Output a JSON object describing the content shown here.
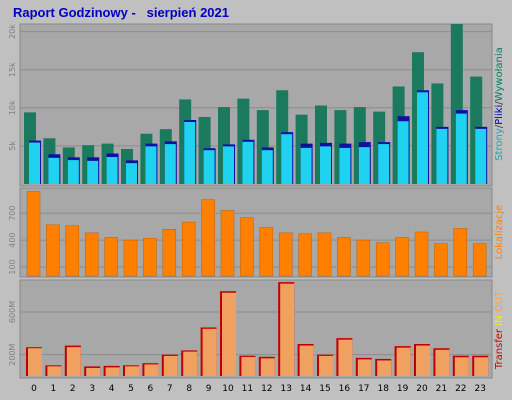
{
  "title": "Raport Godzinowy -   sierpień 2021",
  "chart_data": [
    {
      "type": "bar",
      "categories": [
        "0",
        "1",
        "2",
        "3",
        "4",
        "5",
        "6",
        "7",
        "8",
        "9",
        "10",
        "11",
        "12",
        "13",
        "14",
        "15",
        "16",
        "17",
        "18",
        "19",
        "20",
        "21",
        "22",
        "23"
      ],
      "y_ticks": [
        "5k",
        "10k",
        "15k",
        "20k"
      ],
      "ylim": [
        0,
        21000
      ],
      "grid": true,
      "legend": {
        "placement": "right",
        "entries": [
          {
            "label": "Strony",
            "color": "#00b0c8"
          },
          {
            "label": "Pliki",
            "color": "#0000c0"
          },
          {
            "label": "Wywołania",
            "color": "#008060"
          }
        ]
      },
      "series": [
        {
          "name": "Wywołania",
          "color": "#1b7a5e",
          "values": [
            9400,
            6000,
            4800,
            5100,
            5300,
            4600,
            6600,
            7200,
            11100,
            8800,
            10100,
            11200,
            9700,
            12300,
            9100,
            10300,
            9700,
            10100,
            9500,
            12800,
            17300,
            13200,
            21000,
            14100
          ]
        },
        {
          "name": "Pliki",
          "color": "#1010a0",
          "values": [
            5700,
            3900,
            3500,
            3500,
            4000,
            3100,
            5300,
            5600,
            8400,
            4700,
            5200,
            5800,
            4800,
            6800,
            5300,
            5400,
            5300,
            5500,
            5500,
            8900,
            12300,
            7500,
            9700,
            7500
          ]
        },
        {
          "name": "Strony",
          "color": "#1ed2f0",
          "values": [
            5700,
            3700,
            3400,
            3300,
            3800,
            3000,
            5200,
            5500,
            8400,
            4700,
            5200,
            5800,
            4700,
            6800,
            5000,
            5200,
            5000,
            5100,
            5500,
            8500,
            12300,
            7500,
            9500,
            7500
          ]
        }
      ]
    },
    {
      "type": "bar",
      "categories": [
        "0",
        "1",
        "2",
        "3",
        "4",
        "5",
        "6",
        "7",
        "8",
        "9",
        "10",
        "11",
        "12",
        "13",
        "14",
        "15",
        "16",
        "17",
        "18",
        "19",
        "20",
        "21",
        "22",
        "23"
      ],
      "y_ticks": [
        "100",
        "400",
        "700"
      ],
      "ylim": [
        0,
        980
      ],
      "grid": true,
      "legend": {
        "placement": "right",
        "entries": [
          {
            "label": "Lokalizacje",
            "color": "#ff8000"
          }
        ]
      },
      "series": [
        {
          "name": "Lokalizacje",
          "color": "#ff8000",
          "values": [
            940,
            570,
            560,
            480,
            430,
            400,
            420,
            520,
            600,
            850,
            730,
            650,
            540,
            480,
            470,
            480,
            430,
            400,
            370,
            430,
            490,
            360,
            530,
            360
          ]
        }
      ]
    },
    {
      "type": "bar",
      "categories": [
        "0",
        "1",
        "2",
        "3",
        "4",
        "5",
        "6",
        "7",
        "8",
        "9",
        "10",
        "11",
        "12",
        "13",
        "14",
        "15",
        "16",
        "17",
        "18",
        "19",
        "20",
        "21",
        "22",
        "23"
      ],
      "y_ticks": [
        "200M",
        "600M"
      ],
      "ylim": [
        0,
        900
      ],
      "grid": true,
      "legend": {
        "placement": "right",
        "entries": [
          {
            "label": "Transfer",
            "color": "#c00000"
          },
          {
            "label": "IN",
            "color": "#f0f000"
          },
          {
            "label": "OUT",
            "color": "#ffa040"
          }
        ]
      },
      "series": [
        {
          "name": "Transfer",
          "color": "#c00000",
          "values": [
            270,
            100,
            285,
            90,
            95,
            100,
            120,
            200,
            240,
            455,
            795,
            190,
            180,
            880,
            300,
            200,
            355,
            170,
            160,
            280,
            300,
            260,
            190,
            190
          ]
        },
        {
          "name": "OUT",
          "color": "#f0a060",
          "values": [
            270,
            100,
            280,
            85,
            90,
            100,
            118,
            198,
            238,
            452,
            790,
            188,
            175,
            875,
            295,
            198,
            350,
            165,
            155,
            275,
            295,
            255,
            185,
            185
          ]
        }
      ]
    }
  ]
}
